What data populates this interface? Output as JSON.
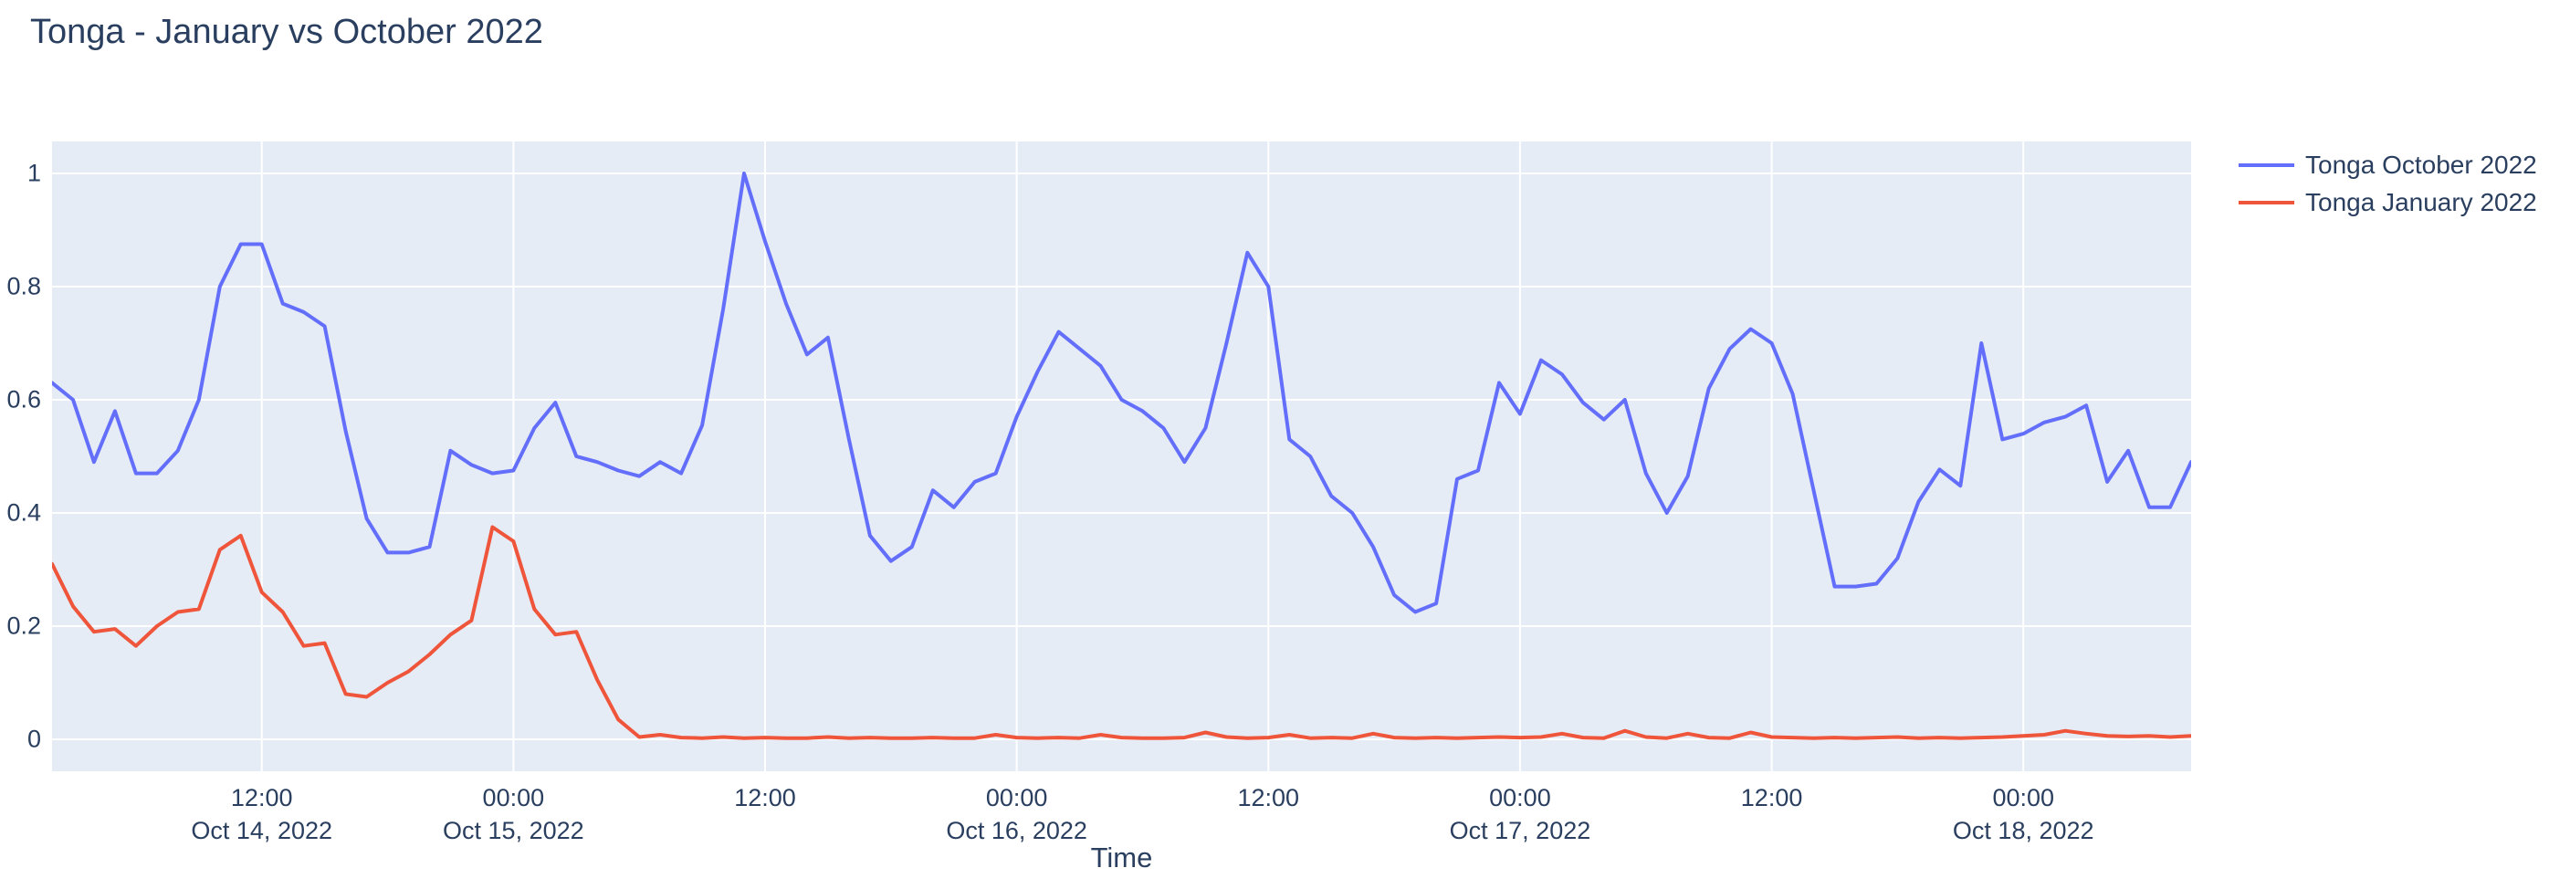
{
  "title": "Tonga - January vs October 2022",
  "axes": {
    "x_label": "Time",
    "y_ticks": [
      0,
      0.2,
      0.4,
      0.6,
      0.8,
      1
    ],
    "x_ticks": [
      {
        "hour": 10,
        "time": "12:00",
        "date": "Oct 14, 2022"
      },
      {
        "hour": 22,
        "time": "00:00",
        "date": "Oct 15, 2022"
      },
      {
        "hour": 34,
        "time": "12:00",
        "date": ""
      },
      {
        "hour": 46,
        "time": "00:00",
        "date": "Oct 16, 2022"
      },
      {
        "hour": 58,
        "time": "12:00",
        "date": ""
      },
      {
        "hour": 70,
        "time": "00:00",
        "date": "Oct 17, 2022"
      },
      {
        "hour": 82,
        "time": "12:00",
        "date": ""
      },
      {
        "hour": 94,
        "time": "00:00",
        "date": "Oct 18, 2022"
      }
    ]
  },
  "colors": {
    "title_text": "#2a3f5f",
    "tick_text": "#2a3f5f",
    "plot_background": "#e5ecf6",
    "gridline": "#ffffff",
    "october_line": "#636efa",
    "january_line": "#ef553b"
  },
  "chart_data": {
    "type": "line",
    "title": "Tonga - January vs October 2022",
    "xlabel": "Time",
    "ylabel": "",
    "grid": true,
    "legend_position": "top-right-outside",
    "x_start": "2022-10-14 02:00",
    "x_step_hours": 1,
    "x_span_hours": 102,
    "ylim": [
      -0.0565,
      1.0565
    ],
    "x_tick_labels": [
      "12:00 Oct 14, 2022",
      "00:00 Oct 15, 2022",
      "12:00",
      "00:00 Oct 16, 2022",
      "12:00",
      "00:00 Oct 17, 2022",
      "12:00",
      "00:00 Oct 18, 2022"
    ],
    "series": [
      {
        "name": "Tonga October 2022",
        "color": "#636efa",
        "values": [
          0.63,
          0.6,
          0.49,
          0.58,
          0.47,
          0.47,
          0.51,
          0.6,
          0.8,
          0.875,
          0.875,
          0.77,
          0.755,
          0.73,
          0.545,
          0.39,
          0.33,
          0.33,
          0.34,
          0.51,
          0.485,
          0.47,
          0.475,
          0.55,
          0.595,
          0.5,
          0.49,
          0.475,
          0.465,
          0.49,
          0.47,
          0.555,
          0.76,
          1.0,
          0.88,
          0.77,
          0.68,
          0.71,
          0.53,
          0.36,
          0.315,
          0.34,
          0.44,
          0.41,
          0.455,
          0.47,
          0.57,
          0.65,
          0.72,
          0.69,
          0.66,
          0.6,
          0.58,
          0.55,
          0.49,
          0.55,
          0.7,
          0.86,
          0.8,
          0.53,
          0.5,
          0.43,
          0.4,
          0.34,
          0.255,
          0.225,
          0.24,
          0.46,
          0.475,
          0.63,
          0.575,
          0.67,
          0.645,
          0.595,
          0.565,
          0.6,
          0.47,
          0.4,
          0.465,
          0.62,
          0.69,
          0.725,
          0.7,
          0.61,
          0.44,
          0.27,
          0.27,
          0.275,
          0.32,
          0.42,
          0.477,
          0.448,
          0.7,
          0.53,
          0.54,
          0.56,
          0.57,
          0.59,
          0.455,
          0.51,
          0.41,
          0.41,
          0.49
        ]
      },
      {
        "name": "Tonga January 2022",
        "color": "#ef553b",
        "values": [
          0.31,
          0.235,
          0.19,
          0.195,
          0.165,
          0.2,
          0.225,
          0.23,
          0.335,
          0.36,
          0.26,
          0.225,
          0.165,
          0.17,
          0.08,
          0.075,
          0.1,
          0.12,
          0.15,
          0.185,
          0.21,
          0.375,
          0.35,
          0.23,
          0.185,
          0.19,
          0.105,
          0.035,
          0.004,
          0.008,
          0.003,
          0.002,
          0.004,
          0.002,
          0.003,
          0.002,
          0.002,
          0.004,
          0.002,
          0.003,
          0.002,
          0.002,
          0.003,
          0.002,
          0.002,
          0.008,
          0.003,
          0.002,
          0.003,
          0.002,
          0.008,
          0.003,
          0.002,
          0.002,
          0.003,
          0.012,
          0.004,
          0.002,
          0.003,
          0.008,
          0.002,
          0.003,
          0.002,
          0.01,
          0.003,
          0.002,
          0.003,
          0.002,
          0.003,
          0.004,
          0.003,
          0.004,
          0.01,
          0.003,
          0.002,
          0.015,
          0.004,
          0.002,
          0.01,
          0.003,
          0.002,
          0.012,
          0.004,
          0.003,
          0.002,
          0.003,
          0.002,
          0.003,
          0.004,
          0.002,
          0.003,
          0.002,
          0.003,
          0.004,
          0.006,
          0.008,
          0.015,
          0.01,
          0.006,
          0.005,
          0.006,
          0.004,
          0.006
        ]
      }
    ]
  }
}
